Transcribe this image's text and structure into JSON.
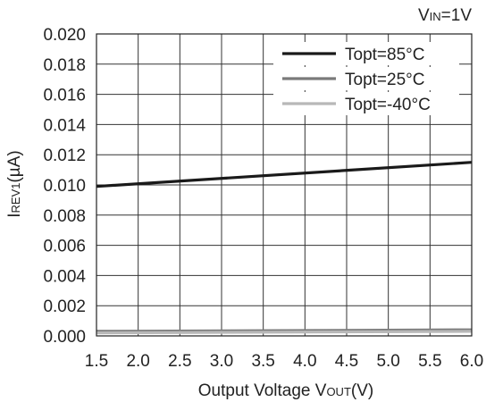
{
  "chart_data": {
    "type": "line",
    "annotation": {
      "main": "V",
      "sub": "IN",
      "suffix": "=1V"
    },
    "xlabel": {
      "main": "Output Voltage V",
      "sub": "OUT",
      "suffix": "(V)"
    },
    "ylabel": {
      "main": "I",
      "sub": "REV1",
      "suffix": "(µA)"
    },
    "xlim": [
      1.5,
      6.0
    ],
    "ylim": [
      0.0,
      0.02
    ],
    "x_ticks": [
      "1.5",
      "2.0",
      "2.5",
      "3.0",
      "3.5",
      "4.0",
      "4.5",
      "5.0",
      "5.5",
      "6.0"
    ],
    "y_ticks": [
      "0.000",
      "0.002",
      "0.004",
      "0.006",
      "0.008",
      "0.010",
      "0.012",
      "0.014",
      "0.016",
      "0.018",
      "0.020"
    ],
    "grid": true,
    "legend_position": "top-right",
    "series": [
      {
        "name": "Topt=85°C",
        "color": "#1a1a1a",
        "x": [
          1.5,
          6.0
        ],
        "y": [
          0.0099,
          0.0115
        ]
      },
      {
        "name": "Topt=25°C",
        "color": "#7a7a7a",
        "x": [
          1.5,
          6.0
        ],
        "y": [
          0.0003,
          0.0004
        ]
      },
      {
        "name": "Topt=-40°C",
        "color": "#b8b8b8",
        "x": [
          1.5,
          6.0
        ],
        "y": [
          0.0002,
          0.0003
        ]
      }
    ]
  }
}
